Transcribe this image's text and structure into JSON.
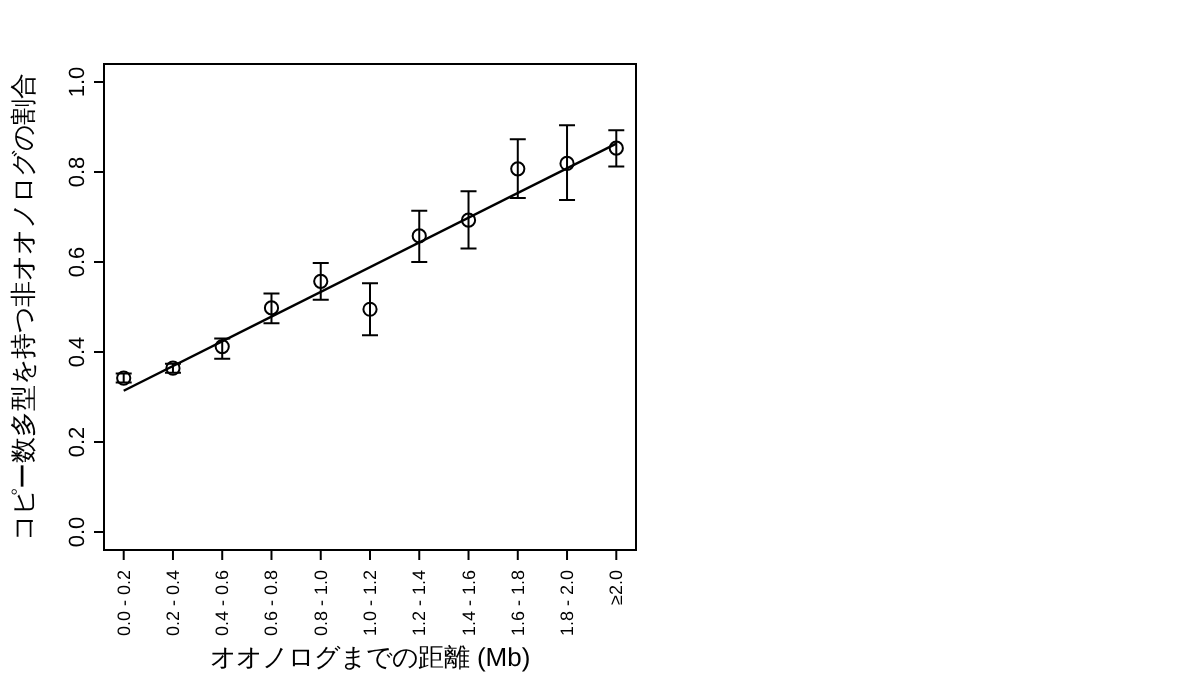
{
  "chart_data": {
    "type": "scatter",
    "xlabel": "オオノログまでの距離 (Mb)",
    "ylabel": "コピー数多型を持つ非オオノログの割合",
    "categories": [
      "0.0 - 0.2",
      "0.2 - 0.4",
      "0.4 - 0.6",
      "0.6 - 0.8",
      "0.8 - 1.0",
      "1.0 - 1.2",
      "1.2 - 1.4",
      "1.4 - 1.6",
      "1.6 - 1.8",
      "1.8 - 2.0",
      "≥2.0"
    ],
    "ylim": [
      -0.04,
      1.04
    ],
    "yticks": [
      {
        "value": 0,
        "label": "0.0"
      },
      {
        "value": 0.2,
        "label": "0.2"
      },
      {
        "value": 0.4,
        "label": "0.4"
      },
      {
        "value": 0.6,
        "label": "0.6"
      },
      {
        "value": 0.8,
        "label": "0.8"
      },
      {
        "value": 1,
        "label": "1.0"
      }
    ],
    "grid": false,
    "series": [
      {
        "type": "scatter",
        "marker": "circle",
        "color": "#000000",
        "values": [
          0.342,
          0.364,
          0.412,
          0.498,
          0.557,
          0.495,
          0.658,
          0.693,
          0.807,
          0.819,
          0.853
        ],
        "errors": [
          [
            0.332,
            0.352
          ],
          [
            0.354,
            0.374
          ],
          [
            0.385,
            0.43
          ],
          [
            0.464,
            0.53
          ],
          [
            0.516,
            0.598
          ],
          [
            0.437,
            0.553
          ],
          [
            0.6,
            0.714
          ],
          [
            0.63,
            0.757
          ],
          [
            0.742,
            0.873
          ],
          [
            0.738,
            0.904
          ],
          [
            0.812,
            0.893
          ]
        ]
      },
      {
        "type": "line",
        "color": "#000000",
        "x": [
          "0.0 - 0.2",
          "≥2.0"
        ],
        "values": [
          0.314,
          0.863
        ],
        "line_style": "solid"
      }
    ]
  }
}
